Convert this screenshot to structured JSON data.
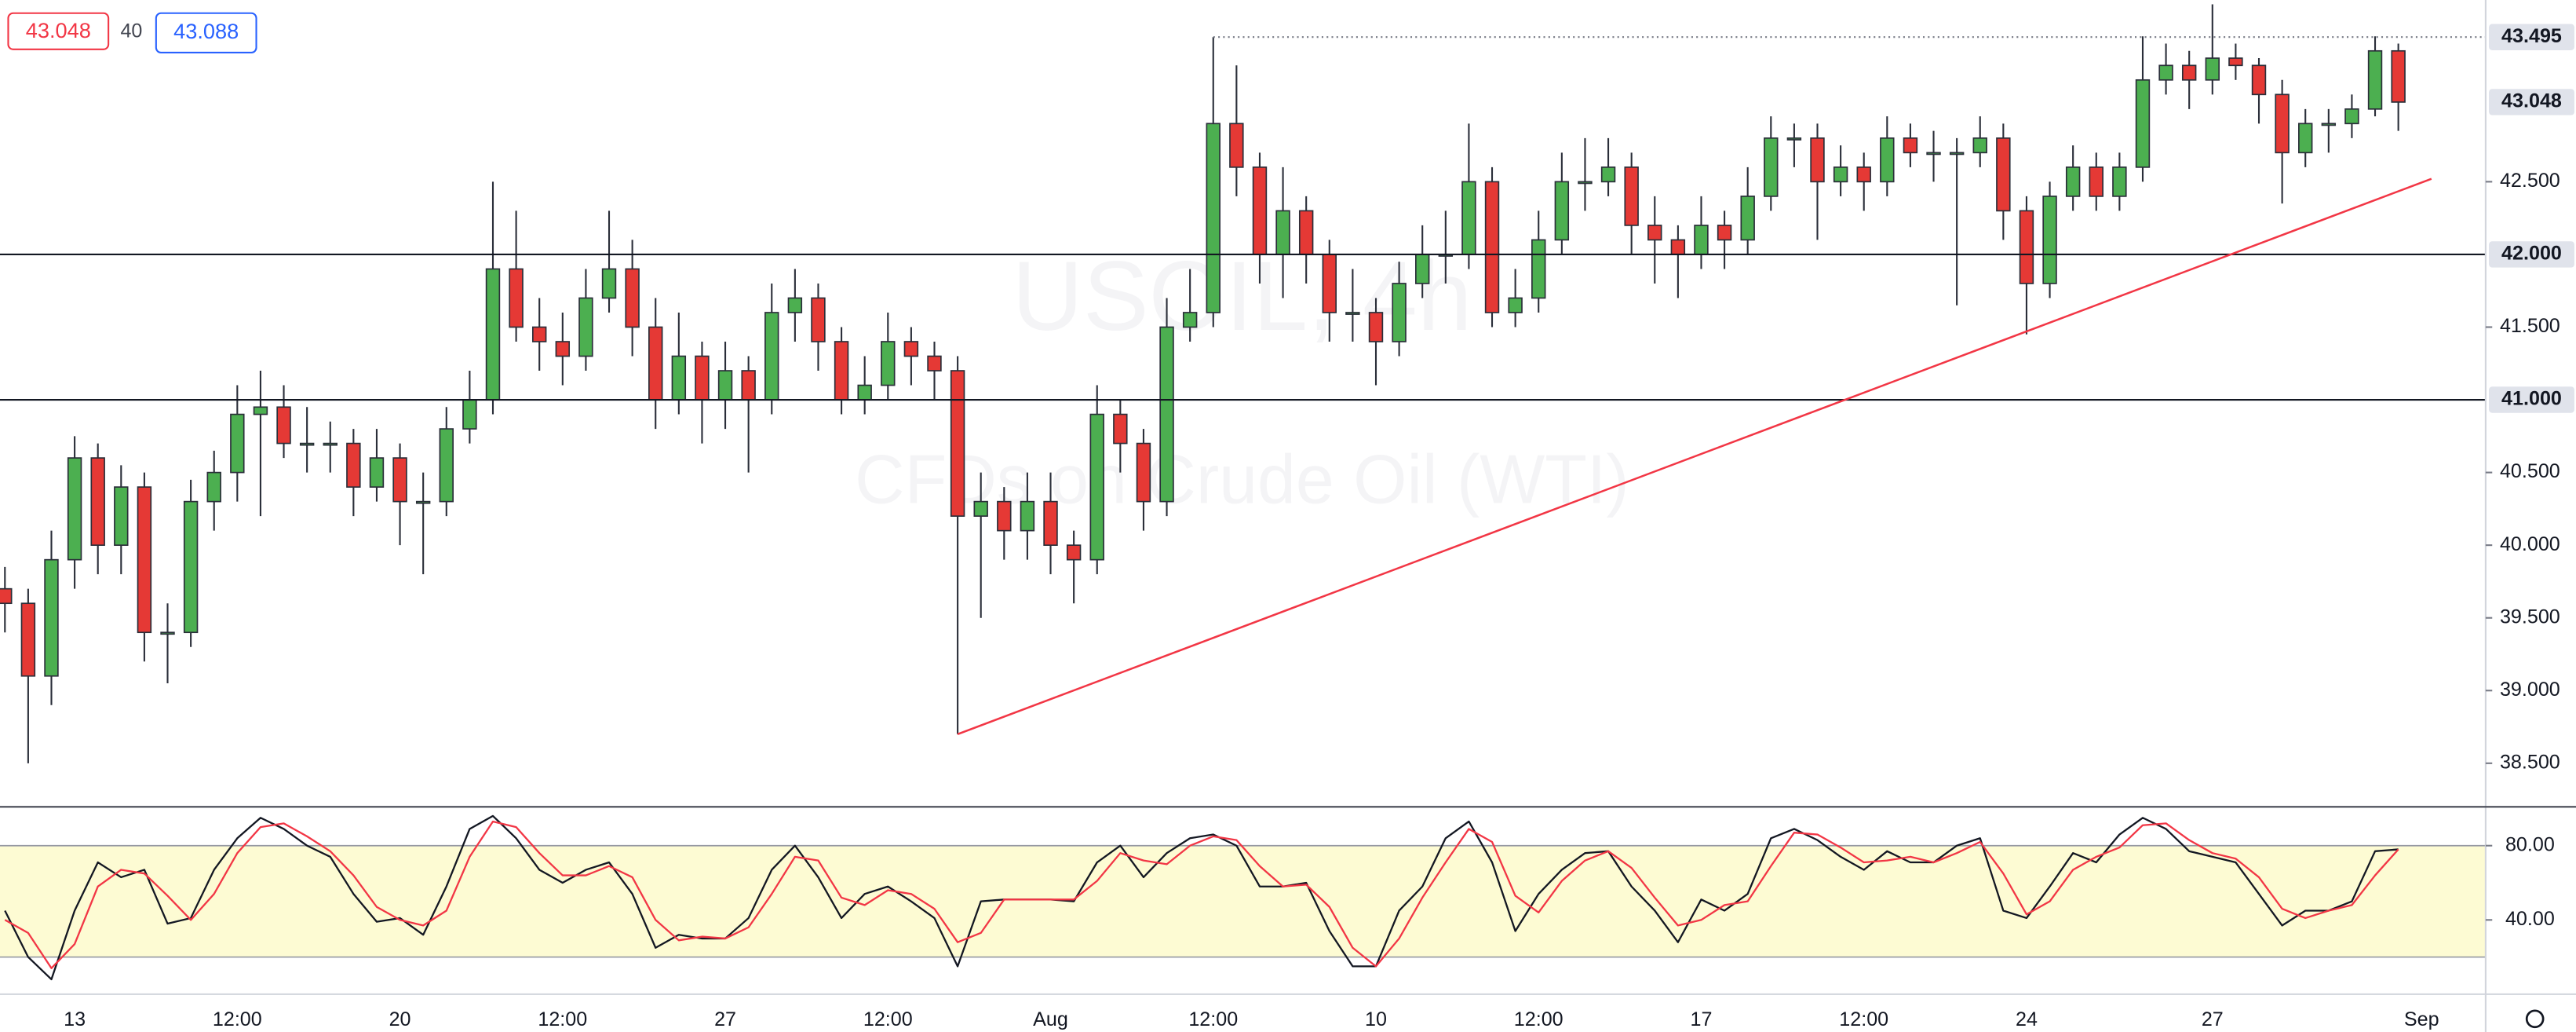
{
  "header": {
    "sell": "43.048",
    "spread": "40",
    "buy": "43.088"
  },
  "chart_data": [
    {
      "type": "candlestick",
      "title": "USOIL, 4h",
      "subtitle": "CFDs on Crude Oil (WTI)",
      "colors": {
        "up": "#4caf50",
        "down": "#e53935",
        "border": "#2a2e39"
      },
      "categories": [
        null,
        null,
        null,
        "13",
        null,
        null,
        null,
        null,
        null,
        null,
        "12:00",
        null,
        null,
        null,
        null,
        null,
        null,
        "20",
        null,
        null,
        null,
        null,
        null,
        null,
        "12:00",
        null,
        null,
        null,
        null,
        null,
        null,
        "27",
        null,
        null,
        null,
        null,
        null,
        null,
        "12:00",
        null,
        null,
        null,
        null,
        null,
        null,
        "Aug",
        null,
        null,
        null,
        null,
        null,
        null,
        "12:00",
        null,
        null,
        null,
        null,
        null,
        null,
        "10",
        null,
        null,
        null,
        null,
        null,
        null,
        "12:00",
        null,
        null,
        null,
        null,
        null,
        null,
        "17",
        null,
        null,
        null,
        null,
        null,
        null,
        "12:00",
        null,
        null,
        null,
        null,
        null,
        null,
        "24",
        null,
        null,
        null,
        null,
        null,
        null,
        null,
        "27",
        null,
        null,
        null,
        null,
        null,
        null,
        null,
        null,
        "Sep"
      ],
      "candles": [
        [
          39.7,
          39.85,
          39.4,
          39.6
        ],
        [
          39.6,
          39.7,
          38.5,
          39.1
        ],
        [
          39.1,
          40.1,
          38.9,
          39.9
        ],
        [
          39.9,
          40.75,
          39.7,
          40.6
        ],
        [
          40.6,
          40.7,
          39.8,
          40.0
        ],
        [
          40.0,
          40.55,
          39.8,
          40.4
        ],
        [
          40.4,
          40.5,
          39.2,
          39.4
        ],
        [
          39.4,
          39.6,
          39.05,
          39.4
        ],
        [
          39.4,
          40.45,
          39.3,
          40.3
        ],
        [
          40.3,
          40.65,
          40.1,
          40.5
        ],
        [
          40.5,
          41.1,
          40.3,
          40.9
        ],
        [
          40.9,
          41.2,
          40.2,
          40.95
        ],
        [
          40.95,
          41.1,
          40.6,
          40.7
        ],
        [
          40.7,
          40.95,
          40.5,
          40.7
        ],
        [
          40.7,
          40.85,
          40.5,
          40.7
        ],
        [
          40.7,
          40.8,
          40.2,
          40.4
        ],
        [
          40.4,
          40.8,
          40.3,
          40.6
        ],
        [
          40.6,
          40.7,
          40.0,
          40.3
        ],
        [
          40.3,
          40.5,
          39.8,
          40.3
        ],
        [
          40.3,
          40.95,
          40.2,
          40.8
        ],
        [
          40.8,
          41.2,
          40.7,
          41.0
        ],
        [
          41.0,
          42.5,
          40.9,
          41.9
        ],
        [
          41.9,
          42.3,
          41.4,
          41.5
        ],
        [
          41.5,
          41.7,
          41.2,
          41.4
        ],
        [
          41.4,
          41.6,
          41.1,
          41.3
        ],
        [
          41.3,
          41.9,
          41.2,
          41.7
        ],
        [
          41.7,
          42.3,
          41.6,
          41.9
        ],
        [
          41.9,
          42.1,
          41.3,
          41.5
        ],
        [
          41.5,
          41.7,
          40.8,
          41.0
        ],
        [
          41.0,
          41.6,
          40.9,
          41.3
        ],
        [
          41.3,
          41.4,
          40.7,
          41.0
        ],
        [
          41.0,
          41.4,
          40.8,
          41.2
        ],
        [
          41.2,
          41.3,
          40.5,
          41.0
        ],
        [
          41.0,
          41.8,
          40.9,
          41.6
        ],
        [
          41.6,
          41.9,
          41.4,
          41.7
        ],
        [
          41.7,
          41.8,
          41.2,
          41.4
        ],
        [
          41.4,
          41.5,
          40.9,
          41.0
        ],
        [
          41.0,
          41.3,
          40.9,
          41.1
        ],
        [
          41.1,
          41.6,
          41.0,
          41.4
        ],
        [
          41.4,
          41.5,
          41.1,
          41.3
        ],
        [
          41.3,
          41.4,
          41.0,
          41.2
        ],
        [
          41.2,
          41.3,
          38.7,
          40.2
        ],
        [
          40.2,
          40.5,
          39.5,
          40.3
        ],
        [
          40.3,
          40.4,
          39.9,
          40.1
        ],
        [
          40.1,
          40.5,
          39.9,
          40.3
        ],
        [
          40.3,
          40.5,
          39.8,
          40.0
        ],
        [
          40.0,
          40.1,
          39.6,
          39.9
        ],
        [
          39.9,
          41.1,
          39.8,
          40.9
        ],
        [
          40.9,
          41.0,
          40.5,
          40.7
        ],
        [
          40.7,
          40.8,
          40.1,
          40.3
        ],
        [
          40.3,
          41.7,
          40.2,
          41.5
        ],
        [
          41.5,
          41.9,
          41.4,
          41.6
        ],
        [
          41.6,
          43.495,
          41.5,
          42.9
        ],
        [
          42.9,
          43.3,
          42.4,
          42.6
        ],
        [
          42.6,
          42.7,
          41.8,
          42.0
        ],
        [
          42.0,
          42.6,
          41.7,
          42.3
        ],
        [
          42.3,
          42.4,
          41.8,
          42.0
        ],
        [
          42.0,
          42.1,
          41.4,
          41.6
        ],
        [
          41.6,
          41.9,
          41.4,
          41.6
        ],
        [
          41.6,
          41.7,
          41.1,
          41.4
        ],
        [
          41.4,
          41.95,
          41.3,
          41.8
        ],
        [
          41.8,
          42.2,
          41.7,
          42.0
        ],
        [
          42.0,
          42.3,
          41.8,
          42.0
        ],
        [
          42.0,
          42.9,
          41.9,
          42.5
        ],
        [
          42.5,
          42.6,
          41.5,
          41.6
        ],
        [
          41.6,
          41.9,
          41.5,
          41.7
        ],
        [
          41.7,
          42.3,
          41.6,
          42.1
        ],
        [
          42.1,
          42.7,
          42.0,
          42.5
        ],
        [
          42.5,
          42.8,
          42.3,
          42.5
        ],
        [
          42.5,
          42.8,
          42.4,
          42.6
        ],
        [
          42.6,
          42.7,
          42.0,
          42.2
        ],
        [
          42.2,
          42.4,
          41.8,
          42.1
        ],
        [
          42.1,
          42.2,
          41.7,
          42.0
        ],
        [
          42.0,
          42.4,
          41.9,
          42.2
        ],
        [
          42.2,
          42.3,
          41.9,
          42.1
        ],
        [
          42.1,
          42.6,
          42.0,
          42.4
        ],
        [
          42.4,
          42.95,
          42.3,
          42.8
        ],
        [
          42.8,
          42.9,
          42.6,
          42.8
        ],
        [
          42.8,
          42.9,
          42.1,
          42.5
        ],
        [
          42.5,
          42.75,
          42.4,
          42.6
        ],
        [
          42.6,
          42.7,
          42.3,
          42.5
        ],
        [
          42.5,
          42.95,
          42.4,
          42.8
        ],
        [
          42.8,
          42.9,
          42.6,
          42.7
        ],
        [
          42.7,
          42.85,
          42.5,
          42.7
        ],
        [
          42.7,
          42.8,
          41.65,
          42.7
        ],
        [
          42.7,
          42.95,
          42.6,
          42.8
        ],
        [
          42.8,
          42.9,
          42.1,
          42.3
        ],
        [
          42.3,
          42.4,
          41.45,
          41.8
        ],
        [
          41.8,
          42.5,
          41.7,
          42.4
        ],
        [
          42.4,
          42.75,
          42.3,
          42.6
        ],
        [
          42.6,
          42.7,
          42.3,
          42.4
        ],
        [
          42.4,
          42.7,
          42.3,
          42.6
        ],
        [
          42.6,
          43.5,
          42.5,
          43.2
        ],
        [
          43.2,
          43.45,
          43.1,
          43.3
        ],
        [
          43.3,
          43.4,
          43.0,
          43.2
        ],
        [
          43.2,
          43.72,
          43.1,
          43.35
        ],
        [
          43.35,
          43.45,
          43.2,
          43.3
        ],
        [
          43.3,
          43.35,
          42.9,
          43.1
        ],
        [
          43.1,
          43.2,
          42.35,
          42.7
        ],
        [
          42.7,
          43.0,
          42.6,
          42.9
        ],
        [
          42.9,
          43.0,
          42.7,
          42.9
        ],
        [
          42.9,
          43.1,
          42.8,
          43.0
        ],
        [
          43.0,
          43.5,
          42.95,
          43.4
        ],
        [
          43.4,
          43.45,
          42.85,
          43.048
        ],
        null
      ],
      "ylim": [
        38.2,
        43.75
      ],
      "yticks": [
        {
          "value": 38.5,
          "label": "38.500"
        },
        {
          "value": 39,
          "label": "39.000"
        },
        {
          "value": 39.5,
          "label": "39.500"
        },
        {
          "value": 40,
          "label": "40.000"
        },
        {
          "value": 40.5,
          "label": "40.500"
        },
        {
          "value": 41.5,
          "label": "41.500"
        },
        {
          "value": 42.5,
          "label": "42.500"
        }
      ],
      "levels": [
        {
          "value": 43.495,
          "label": "43.495",
          "line": "dotted"
        },
        {
          "value": 43.048,
          "label": "43.048",
          "line": "none"
        },
        {
          "value": 42,
          "label": "42.000",
          "line": "solid"
        },
        {
          "value": 41,
          "label": "41.000",
          "line": "solid"
        }
      ],
      "trendline": {
        "color": "#f23645",
        "values": [
          38.7,
          42.52
        ]
      }
    },
    {
      "type": "line",
      "ylim": [
        0,
        100
      ],
      "band": [
        20,
        80
      ],
      "band_color": "#fdfbd3",
      "yticks": [
        {
          "value": 80,
          "label": "80.00"
        },
        {
          "value": 40,
          "label": "40.00"
        }
      ],
      "series": [
        {
          "color": "#131722",
          "values": [
            45,
            20,
            8,
            45,
            71,
            63,
            67,
            38,
            41,
            67,
            84,
            95,
            89,
            80,
            74,
            54,
            39,
            41,
            32,
            58,
            89,
            96,
            84,
            67,
            60,
            67,
            71,
            54,
            25,
            32,
            30,
            30,
            41,
            67,
            80,
            63,
            41,
            54,
            58,
            50,
            41,
            15,
            50,
            51,
            51,
            51,
            50,
            71,
            80,
            63,
            76,
            84,
            86,
            80,
            58,
            58,
            60,
            34,
            15,
            15,
            45,
            58,
            84,
            93,
            71,
            34,
            54,
            67,
            76,
            77,
            58,
            45,
            28,
            51,
            45,
            54,
            84,
            89,
            83,
            74,
            67,
            77,
            71,
            71,
            80,
            84,
            45,
            41,
            58,
            76,
            71,
            86,
            95,
            89,
            77,
            74,
            71,
            54,
            37,
            45,
            45,
            50,
            77,
            78,
            null
          ]
        },
        {
          "color": "#f23645",
          "values": [
            40,
            33,
            14,
            27,
            58,
            67,
            65,
            53,
            40,
            54,
            76,
            90,
            92,
            85,
            77,
            64,
            47,
            40,
            37,
            45,
            74,
            93,
            90,
            76,
            64,
            64,
            69,
            63,
            40,
            29,
            31,
            30,
            36,
            54,
            74,
            72,
            52,
            48,
            56,
            54,
            46,
            28,
            33,
            51,
            51,
            51,
            51,
            61,
            76,
            72,
            70,
            80,
            85,
            83,
            69,
            58,
            59,
            47,
            25,
            15,
            30,
            52,
            71,
            89,
            82,
            53,
            44,
            61,
            72,
            77,
            68,
            52,
            37,
            40,
            48,
            50,
            69,
            87,
            86,
            79,
            71,
            72,
            74,
            71,
            76,
            82,
            65,
            43,
            50,
            67,
            74,
            79,
            91,
            92,
            83,
            76,
            73,
            63,
            46,
            41,
            45,
            48,
            64,
            78,
            null
          ]
        }
      ]
    }
  ]
}
